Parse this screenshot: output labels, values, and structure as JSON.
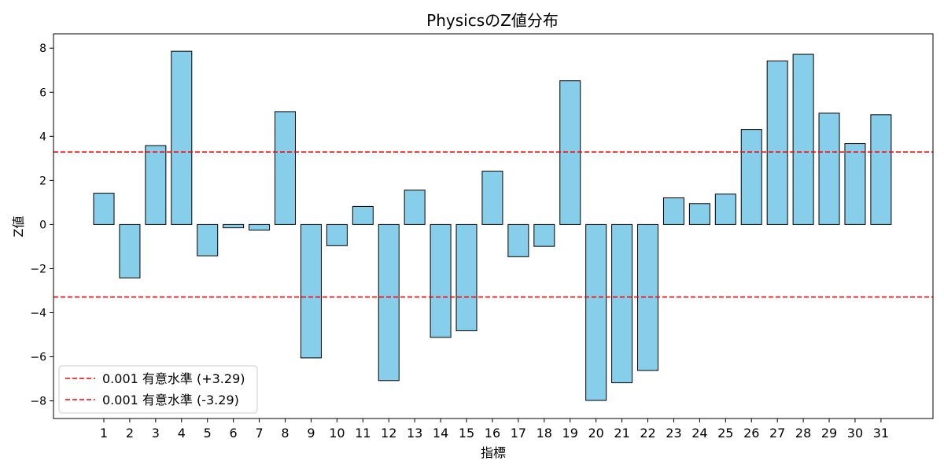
{
  "chart_data": {
    "type": "bar",
    "title": "PhysicsのZ値分布",
    "xlabel": "指標",
    "ylabel": "Z値",
    "categories": [
      "1",
      "2",
      "3",
      "4",
      "5",
      "6",
      "7",
      "8",
      "9",
      "10",
      "11",
      "12",
      "13",
      "14",
      "15",
      "16",
      "17",
      "18",
      "19",
      "20",
      "21",
      "22",
      "23",
      "24",
      "25",
      "26",
      "27",
      "28",
      "29",
      "30",
      "31"
    ],
    "values": [
      1.42,
      -2.42,
      3.58,
      7.86,
      -1.42,
      -0.15,
      -0.25,
      5.12,
      -6.05,
      -0.96,
      0.82,
      -7.08,
      1.56,
      -5.12,
      -4.82,
      2.42,
      -1.46,
      -0.99,
      6.52,
      -7.98,
      -7.18,
      -6.62,
      1.21,
      0.95,
      1.38,
      4.31,
      7.42,
      7.72,
      5.05,
      3.67,
      4.98
    ],
    "ylim": [
      -8.8,
      8.65
    ],
    "yticks": [
      -8,
      -6,
      -4,
      -2,
      0,
      2,
      4,
      6,
      8
    ],
    "ytick_labels": [
      "−8",
      "−6",
      "−4",
      "−2",
      "0",
      "2",
      "4",
      "6",
      "8"
    ],
    "bar_color": "#87ceeb",
    "bar_edge_color": "#000000",
    "grid": false,
    "reference_lines": [
      {
        "value": 3.29,
        "label": "0.001 有意水準 (+3.29)",
        "color": "#ff0000",
        "style": "dashed"
      },
      {
        "value": -3.29,
        "label": "0.001 有意水準 (-3.29)",
        "color": "#ff0000",
        "style": "dashed"
      }
    ],
    "legend_position": "lower-left"
  }
}
